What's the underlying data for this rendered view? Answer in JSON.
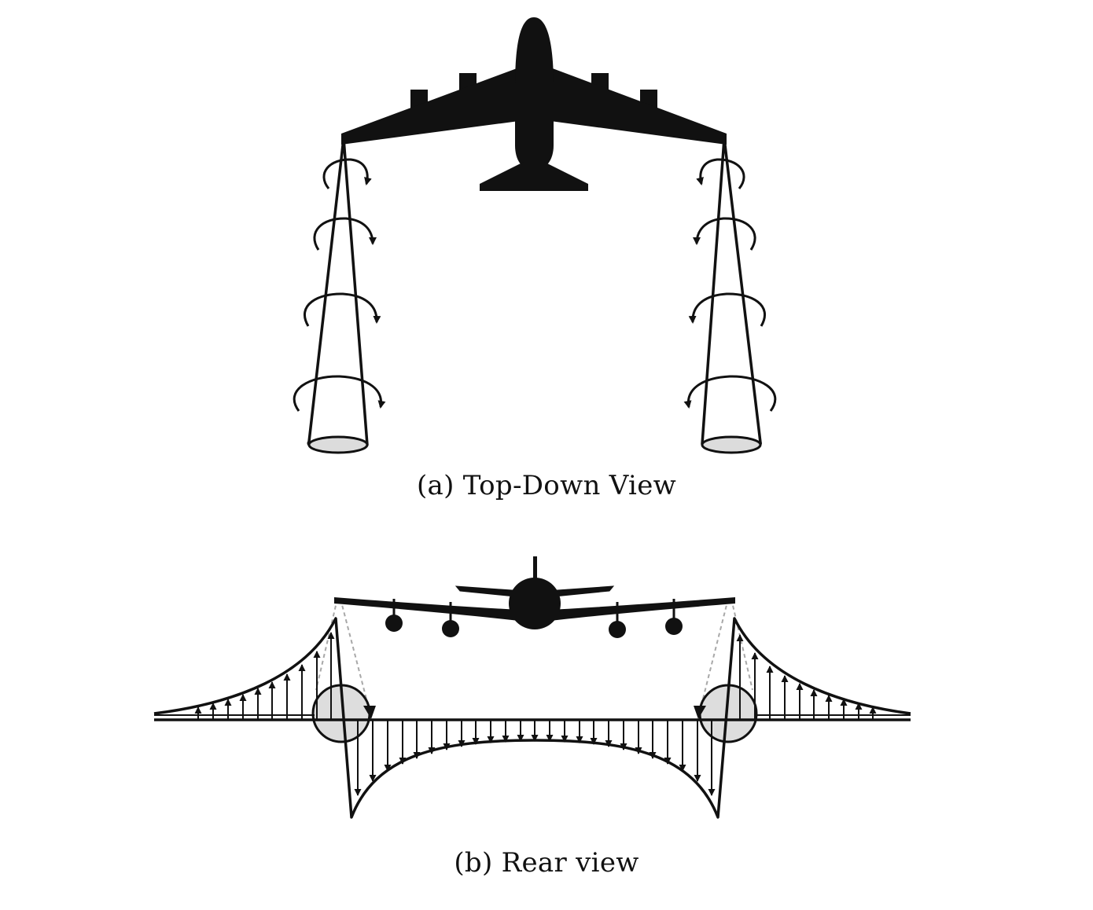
{
  "captions": {
    "top_down": "(a) Top-Down View",
    "rear": "(b) Rear view"
  },
  "colors": {
    "ink": "#111111",
    "vortex_fill": "#dcdcdc",
    "vortex_core": "#d4d4d4",
    "guide": "#a8a8a8"
  },
  "icons": {
    "aircraft_top": "airplane-top-icon",
    "aircraft_rear": "airplane-rear-icon",
    "rotation": "curved-arrow-icon"
  }
}
